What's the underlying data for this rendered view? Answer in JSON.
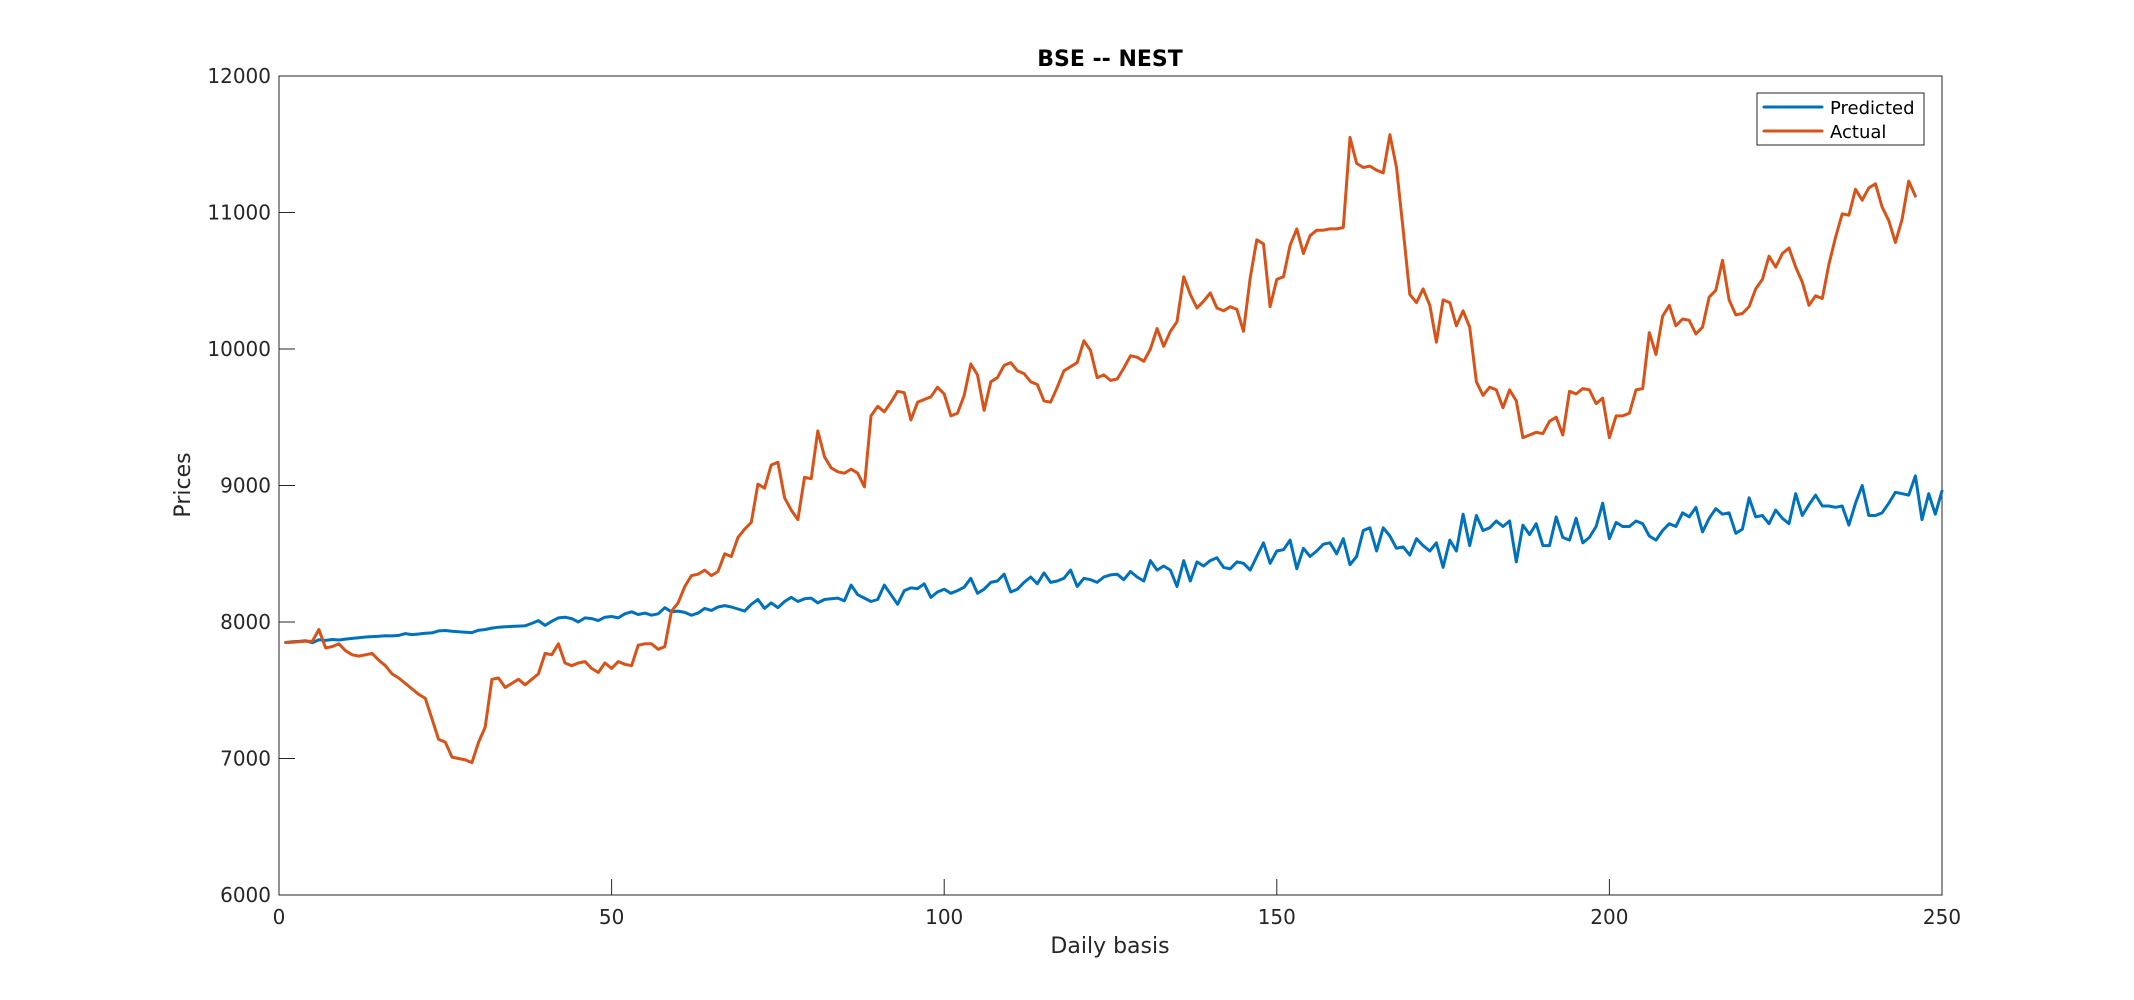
{
  "chart_data": {
    "type": "line",
    "title": "BSE -- NEST",
    "xlabel": "Daily basis",
    "ylabel": "Prices",
    "xlim": [
      0,
      250
    ],
    "ylim": [
      6000,
      12000
    ],
    "xticks": [
      0,
      50,
      100,
      150,
      200,
      250
    ],
    "yticks": [
      6000,
      7000,
      8000,
      9000,
      10000,
      11000,
      12000
    ],
    "grid": false,
    "legend_position": "top-right",
    "x_start": 1,
    "series": [
      {
        "name": "Predicted",
        "color": "#0072BD",
        "values": [
          7850,
          7855,
          7858,
          7862,
          7848,
          7870,
          7865,
          7872,
          7868,
          7875,
          7880,
          7885,
          7890,
          7893,
          7895,
          7900,
          7898,
          7902,
          7915,
          7908,
          7912,
          7918,
          7920,
          7935,
          7938,
          7932,
          7928,
          7925,
          7922,
          7940,
          7945,
          7955,
          7962,
          7965,
          7968,
          7970,
          7972,
          7990,
          8010,
          7975,
          8005,
          8030,
          8035,
          8025,
          8000,
          8030,
          8025,
          8010,
          8035,
          8040,
          8030,
          8060,
          8075,
          8055,
          8065,
          8050,
          8060,
          8105,
          8075,
          8080,
          8070,
          8050,
          8065,
          8100,
          8085,
          8110,
          8120,
          8110,
          8095,
          8080,
          8130,
          8165,
          8100,
          8140,
          8105,
          8150,
          8180,
          8150,
          8170,
          8175,
          8140,
          8165,
          8170,
          8175,
          8155,
          8270,
          8200,
          8175,
          8150,
          8165,
          8270,
          8200,
          8130,
          8230,
          8250,
          8245,
          8280,
          8180,
          8220,
          8240,
          8210,
          8230,
          8255,
          8320,
          8210,
          8240,
          8290,
          8300,
          8350,
          8220,
          8240,
          8290,
          8330,
          8280,
          8360,
          8290,
          8300,
          8320,
          8380,
          8260,
          8320,
          8310,
          8290,
          8330,
          8345,
          8350,
          8310,
          8370,
          8330,
          8300,
          8450,
          8380,
          8410,
          8380,
          8260,
          8450,
          8300,
          8440,
          8410,
          8450,
          8470,
          8400,
          8390,
          8440,
          8430,
          8380,
          8480,
          8580,
          8430,
          8520,
          8530,
          8600,
          8390,
          8540,
          8480,
          8520,
          8570,
          8580,
          8500,
          8610,
          8420,
          8480,
          8670,
          8690,
          8520,
          8690,
          8630,
          8540,
          8550,
          8490,
          8610,
          8560,
          8520,
          8580,
          8400,
          8600,
          8520,
          8790,
          8560,
          8780,
          8670,
          8690,
          8740,
          8700,
          8740,
          8440,
          8710,
          8640,
          8720,
          8560,
          8560,
          8770,
          8620,
          8600,
          8760,
          8580,
          8620,
          8700,
          8870,
          8610,
          8730,
          8700,
          8700,
          8740,
          8720,
          8630,
          8600,
          8670,
          8720,
          8700,
          8800,
          8770,
          8840,
          8660,
          8760,
          8830,
          8790,
          8800,
          8650,
          8680,
          8910,
          8770,
          8780,
          8720,
          8820,
          8760,
          8720,
          8940,
          8780,
          8860,
          8930,
          8850,
          8850,
          8840,
          8850,
          8710,
          8870,
          9000,
          8780,
          8780,
          8800,
          8870,
          8950,
          8940,
          8930,
          9070,
          8750,
          8940,
          8790,
          8960
        ]
      },
      {
        "name": "Actual",
        "color": "#D95319",
        "values": [
          7850,
          7852,
          7855,
          7860,
          7858,
          7945,
          7810,
          7820,
          7840,
          7790,
          7760,
          7750,
          7760,
          7770,
          7720,
          7680,
          7620,
          7590,
          7550,
          7510,
          7470,
          7440,
          7290,
          7140,
          7120,
          7010,
          7000,
          6990,
          6970,
          7120,
          7230,
          7580,
          7590,
          7520,
          7550,
          7580,
          7540,
          7580,
          7620,
          7770,
          7760,
          7840,
          7700,
          7680,
          7700,
          7710,
          7660,
          7630,
          7700,
          7660,
          7710,
          7690,
          7680,
          7830,
          7840,
          7840,
          7800,
          7820,
          8080,
          8140,
          8260,
          8340,
          8350,
          8380,
          8340,
          8370,
          8500,
          8480,
          8620,
          8680,
          8730,
          9010,
          8980,
          9150,
          9170,
          8910,
          8820,
          8750,
          9060,
          9050,
          9400,
          9210,
          9130,
          9100,
          9090,
          9120,
          9090,
          8990,
          9510,
          9580,
          9540,
          9610,
          9690,
          9680,
          9480,
          9610,
          9630,
          9650,
          9720,
          9670,
          9510,
          9530,
          9660,
          9890,
          9810,
          9550,
          9760,
          9790,
          9880,
          9900,
          9840,
          9820,
          9760,
          9740,
          9620,
          9610,
          9720,
          9840,
          9870,
          9900,
          10060,
          9990,
          9790,
          9810,
          9770,
          9780,
          9860,
          9950,
          9940,
          9910,
          10000,
          10150,
          10020,
          10130,
          10200,
          10530,
          10400,
          10300,
          10350,
          10410,
          10300,
          10280,
          10310,
          10290,
          10130,
          10520,
          10800,
          10770,
          10310,
          10510,
          10530,
          10760,
          10880,
          10700,
          10830,
          10870,
          10870,
          10880,
          10880,
          10890,
          11550,
          11360,
          11330,
          11340,
          11310,
          11290,
          11570,
          11330,
          10870,
          10400,
          10340,
          10440,
          10320,
          10050,
          10360,
          10340,
          10170,
          10280,
          10160,
          9760,
          9660,
          9720,
          9700,
          9570,
          9700,
          9620,
          9350,
          9370,
          9390,
          9380,
          9470,
          9500,
          9370,
          9690,
          9670,
          9710,
          9700,
          9600,
          9640,
          9350,
          9510,
          9510,
          9530,
          9700,
          9710,
          10120,
          9960,
          10240,
          10320,
          10170,
          10220,
          10210,
          10110,
          10160,
          10380,
          10430,
          10650,
          10360,
          10250,
          10260,
          10310,
          10440,
          10510,
          10680,
          10600,
          10700,
          10740,
          10600,
          10490,
          10320,
          10390,
          10370,
          10620,
          10820,
          10990,
          10980,
          11170,
          11090,
          11180,
          11210,
          11040,
          10940,
          10780,
          10950,
          11230,
          11120
        ]
      }
    ]
  }
}
